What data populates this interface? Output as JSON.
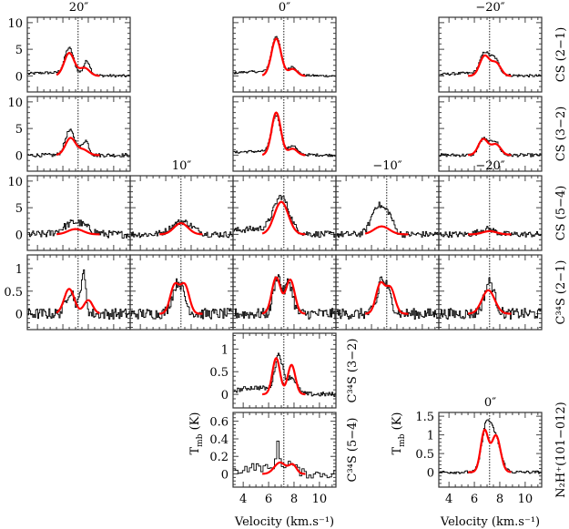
{
  "chart_data": {
    "type": "line",
    "title": "",
    "xlabel": "Velocity (km.s⁻¹)",
    "ylabel": "T_mb (K)",
    "ylabel_main": "T",
    "ylabel_sub": "mb",
    "ylabel_unit": "(K)",
    "xlim": [
      3.2,
      11.3
    ],
    "xticks": [
      4,
      6,
      8,
      10
    ],
    "vlsr_line": 7.2,
    "colors": {
      "observed": "#000000",
      "model": "#ff0000"
    },
    "rows": [
      {
        "label": "CS (2−1)",
        "ylim": [
          -3,
          11
        ],
        "yticks": [
          0,
          5,
          10
        ]
      },
      {
        "label": "CS (3−2)",
        "ylim": [
          -3,
          11
        ],
        "yticks": [
          0,
          5,
          10
        ]
      },
      {
        "label": "CS (5−4)",
        "ylim": [
          -3,
          11
        ],
        "yticks": [
          0,
          5,
          10
        ]
      },
      {
        "label": "C³⁴S (2−1)",
        "ylim": [
          -0.35,
          1.3
        ],
        "yticks": [
          0,
          0.5,
          1
        ]
      },
      {
        "label": "C³⁴S (3−2)",
        "ylim": [
          -0.3,
          1.35
        ],
        "yticks": [
          0,
          0.5,
          1
        ]
      },
      {
        "label": "C³⁴S (5−4)",
        "ylim": [
          -0.15,
          0.7
        ],
        "yticks": [
          0,
          0.2,
          0.4,
          0.6
        ]
      },
      {
        "label": "N₂H⁺(101−012)",
        "ylim": [
          -0.4,
          1.6
        ],
        "yticks": [
          0,
          0.5,
          1,
          1.5
        ]
      }
    ],
    "offset_labels": [
      "20″",
      "10″",
      "0″",
      "−10″",
      "−20″"
    ],
    "panels": [
      {
        "row": 0,
        "col": 0,
        "title": "20″",
        "noise": 0.25,
        "obs": [
          [
            4.8,
            6.5,
            0.35
          ],
          [
            2.6,
            7.9,
            0.25
          ],
          [
            0.6,
            5.0,
            2.0
          ]
        ],
        "model": [
          [
            4.3,
            6.5,
            0.4
          ],
          [
            1.5,
            7.7,
            0.4
          ]
        ]
      },
      {
        "row": 0,
        "col": 2,
        "title": "0″",
        "noise": 0.2,
        "obs": [
          [
            6.9,
            6.6,
            0.35
          ],
          [
            1.5,
            7.9,
            0.3
          ],
          [
            0.8,
            5.0,
            2.0
          ]
        ],
        "model": [
          [
            7.0,
            6.6,
            0.38
          ],
          [
            1.3,
            7.9,
            0.35
          ]
        ]
      },
      {
        "row": 0,
        "col": 4,
        "title": "−20″",
        "noise": 0.25,
        "obs": [
          [
            3.9,
            6.8,
            0.35
          ],
          [
            3.0,
            7.6,
            0.35
          ],
          [
            0.5,
            5.5,
            2.0
          ]
        ],
        "model": [
          [
            3.7,
            6.8,
            0.38
          ],
          [
            2.4,
            7.7,
            0.38
          ]
        ]
      },
      {
        "row": 1,
        "col": 0,
        "noise": 0.35,
        "obs": [
          [
            4.0,
            6.5,
            0.35
          ],
          [
            2.6,
            7.8,
            0.25
          ],
          [
            1.2,
            7.0,
            0.4
          ]
        ],
        "model": [
          [
            3.2,
            6.6,
            0.4
          ],
          [
            1.0,
            7.6,
            0.4
          ]
        ]
      },
      {
        "row": 1,
        "col": 2,
        "noise": 0.25,
        "obs": [
          [
            7.0,
            6.6,
            0.35
          ],
          [
            1.6,
            7.9,
            0.3
          ],
          [
            0.7,
            5.0,
            2.0
          ]
        ],
        "model": [
          [
            8.0,
            6.6,
            0.36
          ],
          [
            1.2,
            7.9,
            0.35
          ]
        ]
      },
      {
        "row": 1,
        "col": 4,
        "noise": 0.3,
        "obs": [
          [
            3.0,
            6.7,
            0.35
          ],
          [
            2.7,
            7.6,
            0.35
          ]
        ],
        "model": [
          [
            3.0,
            6.7,
            0.38
          ],
          [
            2.0,
            7.7,
            0.38
          ]
        ]
      },
      {
        "row": 2,
        "col": 0,
        "noise": 0.7,
        "obs": [
          [
            2.3,
            7.0,
            0.9
          ]
        ],
        "model": [
          [
            1.0,
            7.0,
            0.6
          ]
        ]
      },
      {
        "row": 2,
        "col": 1,
        "title": "10″",
        "noise": 0.6,
        "obs": [
          [
            2.4,
            7.3,
            0.8
          ]
        ],
        "model": [
          [
            2.1,
            7.2,
            0.55
          ]
        ]
      },
      {
        "row": 2,
        "col": 2,
        "noise": 0.6,
        "obs": [
          [
            6.5,
            7.0,
            0.6
          ],
          [
            1.0,
            5.0,
            2.0
          ]
        ],
        "model": [
          [
            6.1,
            7.0,
            0.55
          ]
        ]
      },
      {
        "row": 2,
        "col": 3,
        "title": "−10″",
        "noise": 0.6,
        "obs": [
          [
            5.4,
            6.5,
            0.5
          ],
          [
            3.0,
            7.4,
            0.35
          ]
        ],
        "model": [
          [
            1.5,
            6.8,
            0.6
          ]
        ]
      },
      {
        "row": 2,
        "col": 4,
        "title": "−20″",
        "noise": 0.55,
        "obs": [
          [
            1.0,
            7.0,
            0.6
          ]
        ],
        "model": [
          [
            0.6,
            7.2,
            0.55
          ]
        ]
      },
      {
        "row": 3,
        "col": 0,
        "noise": 0.12,
        "obs": [
          [
            0.5,
            6.6,
            0.35
          ],
          [
            0.9,
            7.6,
            0.2
          ]
        ],
        "model": [
          [
            0.55,
            6.5,
            0.4
          ],
          [
            0.3,
            8.0,
            0.35
          ]
        ]
      },
      {
        "row": 3,
        "col": 1,
        "noise": 0.12,
        "obs": [
          [
            0.7,
            7.0,
            0.45
          ]
        ],
        "model": [
          [
            0.62,
            6.7,
            0.35
          ],
          [
            0.62,
            7.5,
            0.35
          ]
        ]
      },
      {
        "row": 3,
        "col": 2,
        "noise": 0.12,
        "obs": [
          [
            0.85,
            6.7,
            0.3
          ],
          [
            0.7,
            7.6,
            0.3
          ]
        ],
        "model": [
          [
            0.8,
            6.6,
            0.35
          ],
          [
            0.75,
            7.7,
            0.35
          ]
        ]
      },
      {
        "row": 3,
        "col": 3,
        "noise": 0.12,
        "obs": [
          [
            0.7,
            7.0,
            0.45
          ],
          [
            0.3,
            6.7,
            0.08
          ]
        ],
        "model": [
          [
            0.65,
            6.7,
            0.35
          ],
          [
            0.55,
            7.5,
            0.35
          ]
        ]
      },
      {
        "row": 3,
        "col": 4,
        "noise": 0.12,
        "obs": [
          [
            0.7,
            7.2,
            0.4
          ]
        ],
        "model": [
          [
            0.52,
            7.1,
            0.5
          ]
        ]
      },
      {
        "row": 4,
        "col": 2,
        "noise": 0.05,
        "obs": [
          [
            0.8,
            6.8,
            0.3
          ],
          [
            0.35,
            7.8,
            0.4
          ],
          [
            0.15,
            5.0,
            1.5
          ]
        ],
        "model": [
          [
            0.8,
            6.6,
            0.3
          ],
          [
            0.65,
            7.8,
            0.3
          ]
        ]
      },
      {
        "row": 5,
        "col": 2,
        "noise": 0.05,
        "obs": [
          [
            0.28,
            6.7,
            0.15
          ],
          [
            0.12,
            7.6,
            0.5
          ],
          [
            0.08,
            5.0,
            1.2
          ]
        ],
        "model": [
          [
            0.13,
            6.9,
            0.45
          ],
          [
            0.1,
            7.9,
            0.3
          ]
        ]
      },
      {
        "row": 6,
        "col": 4,
        "title": "0″",
        "noise": 0.04,
        "obs": [
          [
            1.05,
            6.9,
            0.35
          ],
          [
            0.95,
            7.6,
            0.45
          ]
        ],
        "model": [
          [
            1.1,
            6.8,
            0.3
          ],
          [
            0.98,
            7.7,
            0.35
          ]
        ]
      }
    ]
  }
}
